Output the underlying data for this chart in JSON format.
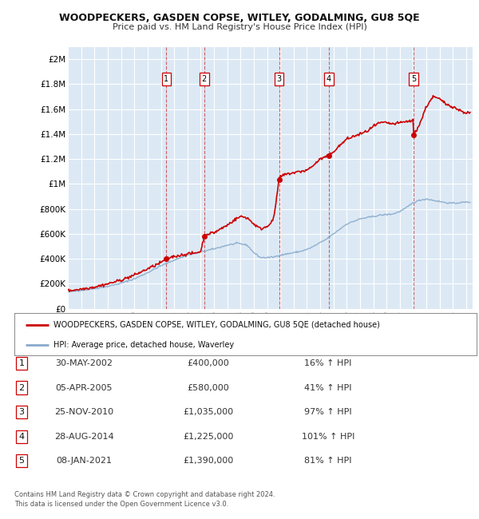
{
  "title": "WOODPECKERS, GASDEN COPSE, WITLEY, GODALMING, GU8 5QE",
  "subtitle": "Price paid vs. HM Land Registry's House Price Index (HPI)",
  "ylabel_ticks": [
    "£0",
    "£200K",
    "£400K",
    "£600K",
    "£800K",
    "£1M",
    "£1.2M",
    "£1.4M",
    "£1.6M",
    "£1.8M",
    "£2M"
  ],
  "ytick_values": [
    0,
    200000,
    400000,
    600000,
    800000,
    1000000,
    1200000,
    1400000,
    1600000,
    1800000,
    2000000
  ],
  "ylim": [
    0,
    2100000
  ],
  "xlim_start": 1995.0,
  "xlim_end": 2025.5,
  "background_color": "#dce9f5",
  "plot_bg_color": "#dce9f5",
  "grid_color": "#ffffff",
  "legend_label_red": "WOODPECKERS, GASDEN COPSE, WITLEY, GODALMING, GU8 5QE (detached house)",
  "legend_label_blue": "HPI: Average price, detached house, Waverley",
  "transactions": [
    {
      "num": 1,
      "date": "30-MAY-2002",
      "price": 400000,
      "pct": "16%",
      "year": 2002.41
    },
    {
      "num": 2,
      "date": "05-APR-2005",
      "price": 580000,
      "pct": "41%",
      "year": 2005.26
    },
    {
      "num": 3,
      "date": "25-NOV-2010",
      "price": 1035000,
      "pct": "97%",
      "year": 2010.9
    },
    {
      "num": 4,
      "date": "28-AUG-2014",
      "price": 1225000,
      "pct": "101%",
      "year": 2014.66
    },
    {
      "num": 5,
      "date": "08-JAN-2021",
      "price": 1390000,
      "pct": "81%",
      "year": 2021.03
    }
  ],
  "footer_line1": "Contains HM Land Registry data © Crown copyright and database right 2024.",
  "footer_line2": "This data is licensed under the Open Government Licence v3.0.",
  "red_color": "#cc0000",
  "blue_color": "#88aacc",
  "table_rows": [
    [
      1,
      "30-MAY-2002",
      "£400,000",
      "16% ↑ HPI"
    ],
    [
      2,
      "05-APR-2005",
      "£580,000",
      "41% ↑ HPI"
    ],
    [
      3,
      "25-NOV-2010",
      "£1,035,000",
      "97% ↑ HPI"
    ],
    [
      4,
      "28-AUG-2014",
      "£1,225,000",
      "101% ↑ HPI"
    ],
    [
      5,
      "08-JAN-2021",
      "£1,390,000",
      "81% ↑ HPI"
    ]
  ]
}
